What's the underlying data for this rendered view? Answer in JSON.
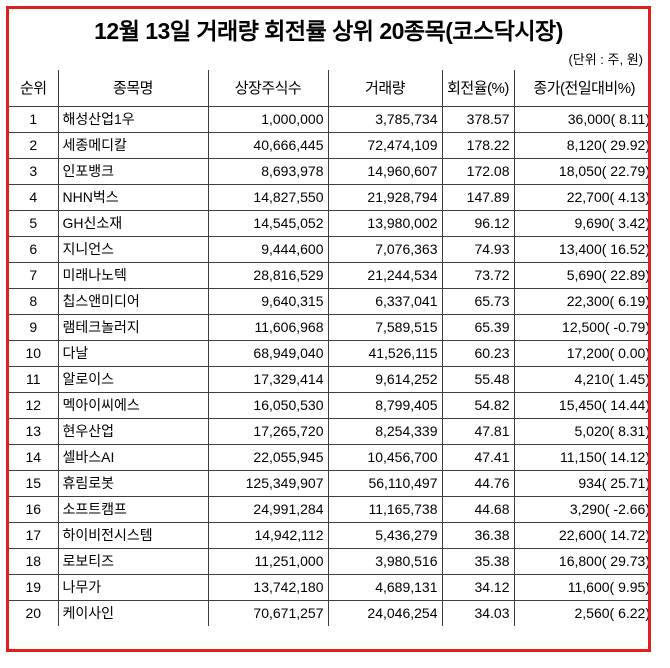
{
  "title": "12월 13일 거래량 회전률 상위 20종목(코스닥시장)",
  "unit_note": "(단위 : 주, 원)",
  "accent_border_color": "#e01e1e",
  "grid_line_color": "#3e3e3e",
  "table": {
    "columns": [
      "순위",
      "종목명",
      "상장주식수",
      "거래량",
      "회전율(%)",
      "종가(전일대비%)"
    ],
    "rows": [
      {
        "rank": "1",
        "name": "해성산업1우",
        "shares": "1,000,000",
        "volume": "3,785,734",
        "turnover": "378.57",
        "close": "36,000",
        "change": "8.11"
      },
      {
        "rank": "2",
        "name": "세종메디칼",
        "shares": "40,666,445",
        "volume": "72,474,109",
        "turnover": "178.22",
        "close": "8,120",
        "change": "29.92"
      },
      {
        "rank": "3",
        "name": "인포뱅크",
        "shares": "8,693,978",
        "volume": "14,960,607",
        "turnover": "172.08",
        "close": "18,050",
        "change": "22.79"
      },
      {
        "rank": "4",
        "name": "NHN벅스",
        "shares": "14,827,550",
        "volume": "21,928,794",
        "turnover": "147.89",
        "close": "22,700",
        "change": "4.13"
      },
      {
        "rank": "5",
        "name": "GH신소재",
        "shares": "14,545,052",
        "volume": "13,980,002",
        "turnover": "96.12",
        "close": "9,690",
        "change": "3.42"
      },
      {
        "rank": "6",
        "name": "지니언스",
        "shares": "9,444,600",
        "volume": "7,076,363",
        "turnover": "74.93",
        "close": "13,400",
        "change": "16.52"
      },
      {
        "rank": "7",
        "name": "미래나노텍",
        "shares": "28,816,529",
        "volume": "21,244,534",
        "turnover": "73.72",
        "close": "5,690",
        "change": "22.89"
      },
      {
        "rank": "8",
        "name": "칩스앤미디어",
        "shares": "9,640,315",
        "volume": "6,337,041",
        "turnover": "65.73",
        "close": "22,300",
        "change": "6.19"
      },
      {
        "rank": "9",
        "name": "램테크놀러지",
        "shares": "11,606,968",
        "volume": "7,589,515",
        "turnover": "65.39",
        "close": "12,500",
        "change": "-0.79"
      },
      {
        "rank": "10",
        "name": "다날",
        "shares": "68,949,040",
        "volume": "41,526,115",
        "turnover": "60.23",
        "close": "17,200",
        "change": "0.00"
      },
      {
        "rank": "11",
        "name": "알로이스",
        "shares": "17,329,414",
        "volume": "9,614,252",
        "turnover": "55.48",
        "close": "4,210",
        "change": "1.45"
      },
      {
        "rank": "12",
        "name": "멕아이씨에스",
        "shares": "16,050,530",
        "volume": "8,799,405",
        "turnover": "54.82",
        "close": "15,450",
        "change": "14.44"
      },
      {
        "rank": "13",
        "name": "현우산업",
        "shares": "17,265,720",
        "volume": "8,254,339",
        "turnover": "47.81",
        "close": "5,020",
        "change": "8.31"
      },
      {
        "rank": "14",
        "name": "셀바스AI",
        "shares": "22,055,945",
        "volume": "10,456,700",
        "turnover": "47.41",
        "close": "11,150",
        "change": "14.12"
      },
      {
        "rank": "15",
        "name": "휴림로봇",
        "shares": "125,349,907",
        "volume": "56,110,497",
        "turnover": "44.76",
        "close": "934",
        "change": "25.71"
      },
      {
        "rank": "16",
        "name": "소프트캠프",
        "shares": "24,991,284",
        "volume": "11,165,738",
        "turnover": "44.68",
        "close": "3,290",
        "change": "-2.66"
      },
      {
        "rank": "17",
        "name": "하이비전시스템",
        "shares": "14,942,112",
        "volume": "5,436,279",
        "turnover": "36.38",
        "close": "22,600",
        "change": "14.72"
      },
      {
        "rank": "18",
        "name": "로보티즈",
        "shares": "11,251,000",
        "volume": "3,980,516",
        "turnover": "35.38",
        "close": "16,800",
        "change": "29.73"
      },
      {
        "rank": "19",
        "name": "나무가",
        "shares": "13,742,180",
        "volume": "4,689,131",
        "turnover": "34.12",
        "close": "11,600",
        "change": "9.95"
      },
      {
        "rank": "20",
        "name": "케이사인",
        "shares": "70,671,257",
        "volume": "24,046,254",
        "turnover": "34.03",
        "close": "2,560",
        "change": "6.22"
      }
    ]
  }
}
